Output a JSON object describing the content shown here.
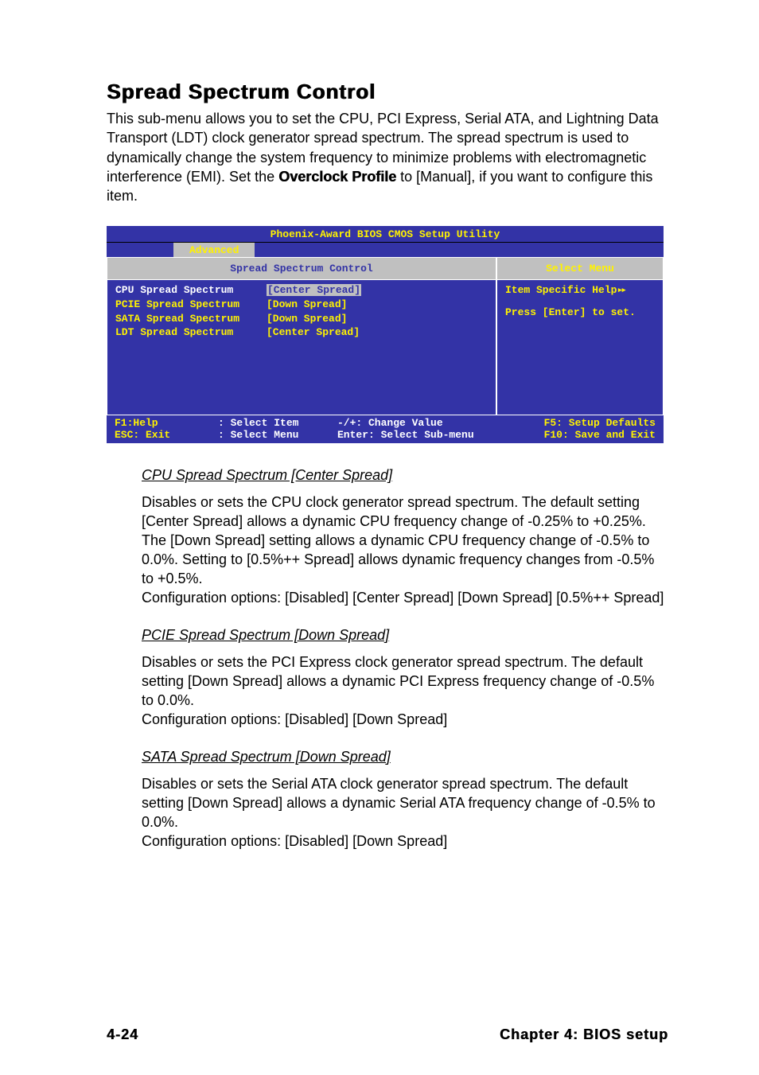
{
  "heading": "Spread Spectrum Control",
  "intro_pre": "This sub-menu allows you to set the CPU, PCI Express, Serial ATA, and Lightning Data Transport (LDT) clock generator spread spectrum. The spread spectrum is used to dynamically change the system frequency to minimize problems with  electromagnetic interference (EMI). Set the ",
  "intro_bold": "Overclock Profile",
  "intro_post": " to [Manual], if you want to configure this item.",
  "bios": {
    "titlebar": "Phoenix-Award BIOS CMOS Setup Utility",
    "menutab": "Advanced",
    "left_title": "Spread Spectrum Control",
    "right_title": "Select Menu",
    "settings": [
      {
        "label": "CPU Spread Spectrum",
        "value": "[Center Spread]",
        "selected": true
      },
      {
        "label": "PCIE Spread Spectrum",
        "value": "[Down Spread]",
        "selected": false
      },
      {
        "label": "SATA Spread Spectrum",
        "value": "[Down Spread]",
        "selected": false
      },
      {
        "label": "LDT Spread Spectrum",
        "value": "[Center Spread]",
        "selected": false
      }
    ],
    "help_line1": "Item Specific Help",
    "help_line2": "Press [Enter] to set.",
    "footer": {
      "r1c1": "F1:Help",
      "r1c2": ": Select Item",
      "r1c3": "-/+: Change Value",
      "r1c4": "F5: Setup Defaults",
      "r2c1": "ESC: Exit",
      "r2c2": ": Select Menu",
      "r2c3": "Enter: Select Sub-menu",
      "r2c4": "F10: Save and Exit"
    },
    "colors": {
      "bg_blue": "#3333a6",
      "bg_gray": "#c0c0c0",
      "text_yellow": "#fff200",
      "text_white": "#ffffff"
    }
  },
  "sections": [
    {
      "title": "CPU Spread Spectrum [Center Spread]",
      "body": "Disables or sets the CPU clock generator spread spectrum. The default setting [Center Spread] allows a dynamic CPU frequency change of -0.25% to +0.25%. The [Down Spread] setting allows a dynamic CPU frequency change of -0.5% to 0.0%. Setting to [0.5%++ Spread] allows dynamic frequency changes from -0.5% to +0.5%.\nConfiguration options: [Disabled] [Center Spread] [Down Spread] [0.5%++ Spread]"
    },
    {
      "title": "PCIE Spread Spectrum [Down Spread]",
      "body": "Disables or sets the PCI Express clock generator spread spectrum. The default setting [Down Spread] allows a dynamic PCI Express frequency change of -0.5% to 0.0%.\nConfiguration options: [Disabled] [Down Spread]"
    },
    {
      "title": "SATA Spread Spectrum [Down Spread]",
      "body": "Disables or sets the Serial ATA clock generator spread spectrum. The default setting [Down Spread] allows a dynamic Serial ATA frequency change of -0.5% to 0.0%.\nConfiguration options: [Disabled] [Down Spread]"
    }
  ],
  "page_footer_left": "4-24",
  "page_footer_right": "Chapter 4: BIOS setup"
}
